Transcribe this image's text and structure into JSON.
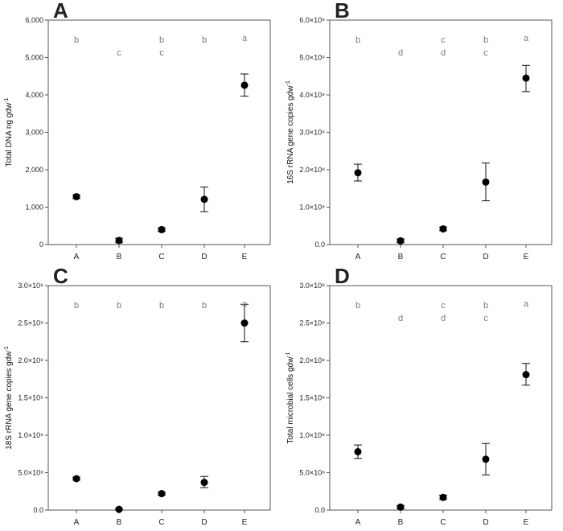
{
  "chart_data": [
    {
      "panel": "A",
      "type": "scatter",
      "ylabel": "Total DNA ng gdw",
      "ylabel_sup": "-1",
      "ylim": [
        0,
        6000
      ],
      "yticks": [
        "0",
        "1,000",
        "2,000",
        "3,000",
        "4,000",
        "5,000",
        "6,000"
      ],
      "ytick_values": [
        0,
        1000,
        2000,
        3000,
        4000,
        5000,
        6000
      ],
      "categories": [
        "A",
        "B",
        "C",
        "D",
        "E"
      ],
      "values": [
        1280,
        110,
        400,
        1210,
        4260
      ],
      "err_low": [
        1230,
        50,
        350,
        880,
        3970
      ],
      "err_high": [
        1330,
        170,
        450,
        1540,
        4560
      ],
      "letters": [
        [
          "b"
        ],
        [
          "c"
        ],
        [
          "b",
          "c"
        ],
        [
          "b"
        ],
        [
          "a"
        ]
      ]
    },
    {
      "panel": "B",
      "type": "scatter",
      "ylabel": "16S rRNA gene copies gdw",
      "ylabel_sup": "-1",
      "ylim": [
        0,
        6000000000
      ],
      "yticks": [
        "0.0",
        "1.0×10⁹",
        "2.0×10⁹",
        "3.0×10⁹",
        "4.0×10⁹",
        "5.0×10⁹",
        "6.0×10⁹"
      ],
      "ytick_values": [
        0,
        1000000000,
        2000000000,
        3000000000,
        4000000000,
        5000000000,
        6000000000
      ],
      "categories": [
        "A",
        "B",
        "C",
        "D",
        "E"
      ],
      "values": [
        1920000000,
        100000000,
        420000000,
        1670000000,
        4450000000
      ],
      "err_low": [
        1700000000,
        50000000,
        370000000,
        1170000000,
        4090000000
      ],
      "err_high": [
        2150000000,
        150000000,
        470000000,
        2180000000,
        4790000000
      ],
      "letters": [
        [
          "b"
        ],
        [
          "d"
        ],
        [
          "c",
          "d"
        ],
        [
          "b",
          "c"
        ],
        [
          "a"
        ]
      ]
    },
    {
      "panel": "C",
      "type": "scatter",
      "ylabel": "18S rRNA gene copies gdw",
      "ylabel_sup": "-1",
      "ylim": [
        0,
        3000000000
      ],
      "yticks": [
        "0.0",
        "5.0×10⁸",
        "1.0×10⁹",
        "1.5×10⁹",
        "2.0×10⁹",
        "2.5×10⁹",
        "3.0×10⁹"
      ],
      "ytick_values": [
        0,
        500000000,
        1000000000,
        1500000000,
        2000000000,
        2500000000,
        3000000000
      ],
      "categories": [
        "A",
        "B",
        "C",
        "D",
        "E"
      ],
      "values": [
        420000000,
        10000000,
        220000000,
        370000000,
        2500000000
      ],
      "err_low": [
        400000000,
        0,
        200000000,
        300000000,
        2250000000
      ],
      "err_high": [
        440000000,
        20000000,
        240000000,
        450000000,
        2750000000
      ],
      "letters": [
        [
          "b"
        ],
        [
          "b"
        ],
        [
          "b"
        ],
        [
          "b"
        ],
        [
          "a"
        ]
      ]
    },
    {
      "panel": "D",
      "type": "scatter",
      "ylabel": "Total microbial cells gdw",
      "ylabel_sup": "-1",
      "ylim": [
        0,
        3000000000
      ],
      "yticks": [
        "0.0",
        "5.0×10⁸",
        "1.0×10⁹",
        "1.5×10⁹",
        "2.0×10⁹",
        "2.5×10⁹",
        "3.0×10⁹"
      ],
      "ytick_values": [
        0,
        500000000,
        1000000000,
        1500000000,
        2000000000,
        2500000000,
        3000000000
      ],
      "categories": [
        "A",
        "B",
        "C",
        "D",
        "E"
      ],
      "values": [
        780000000,
        40000000,
        170000000,
        680000000,
        1810000000
      ],
      "err_low": [
        690000000,
        20000000,
        140000000,
        470000000,
        1670000000
      ],
      "err_high": [
        870000000,
        60000000,
        200000000,
        890000000,
        1960000000
      ],
      "letters": [
        [
          "b"
        ],
        [
          "d"
        ],
        [
          "c",
          "d"
        ],
        [
          "b",
          "c"
        ],
        [
          "a"
        ]
      ]
    }
  ]
}
